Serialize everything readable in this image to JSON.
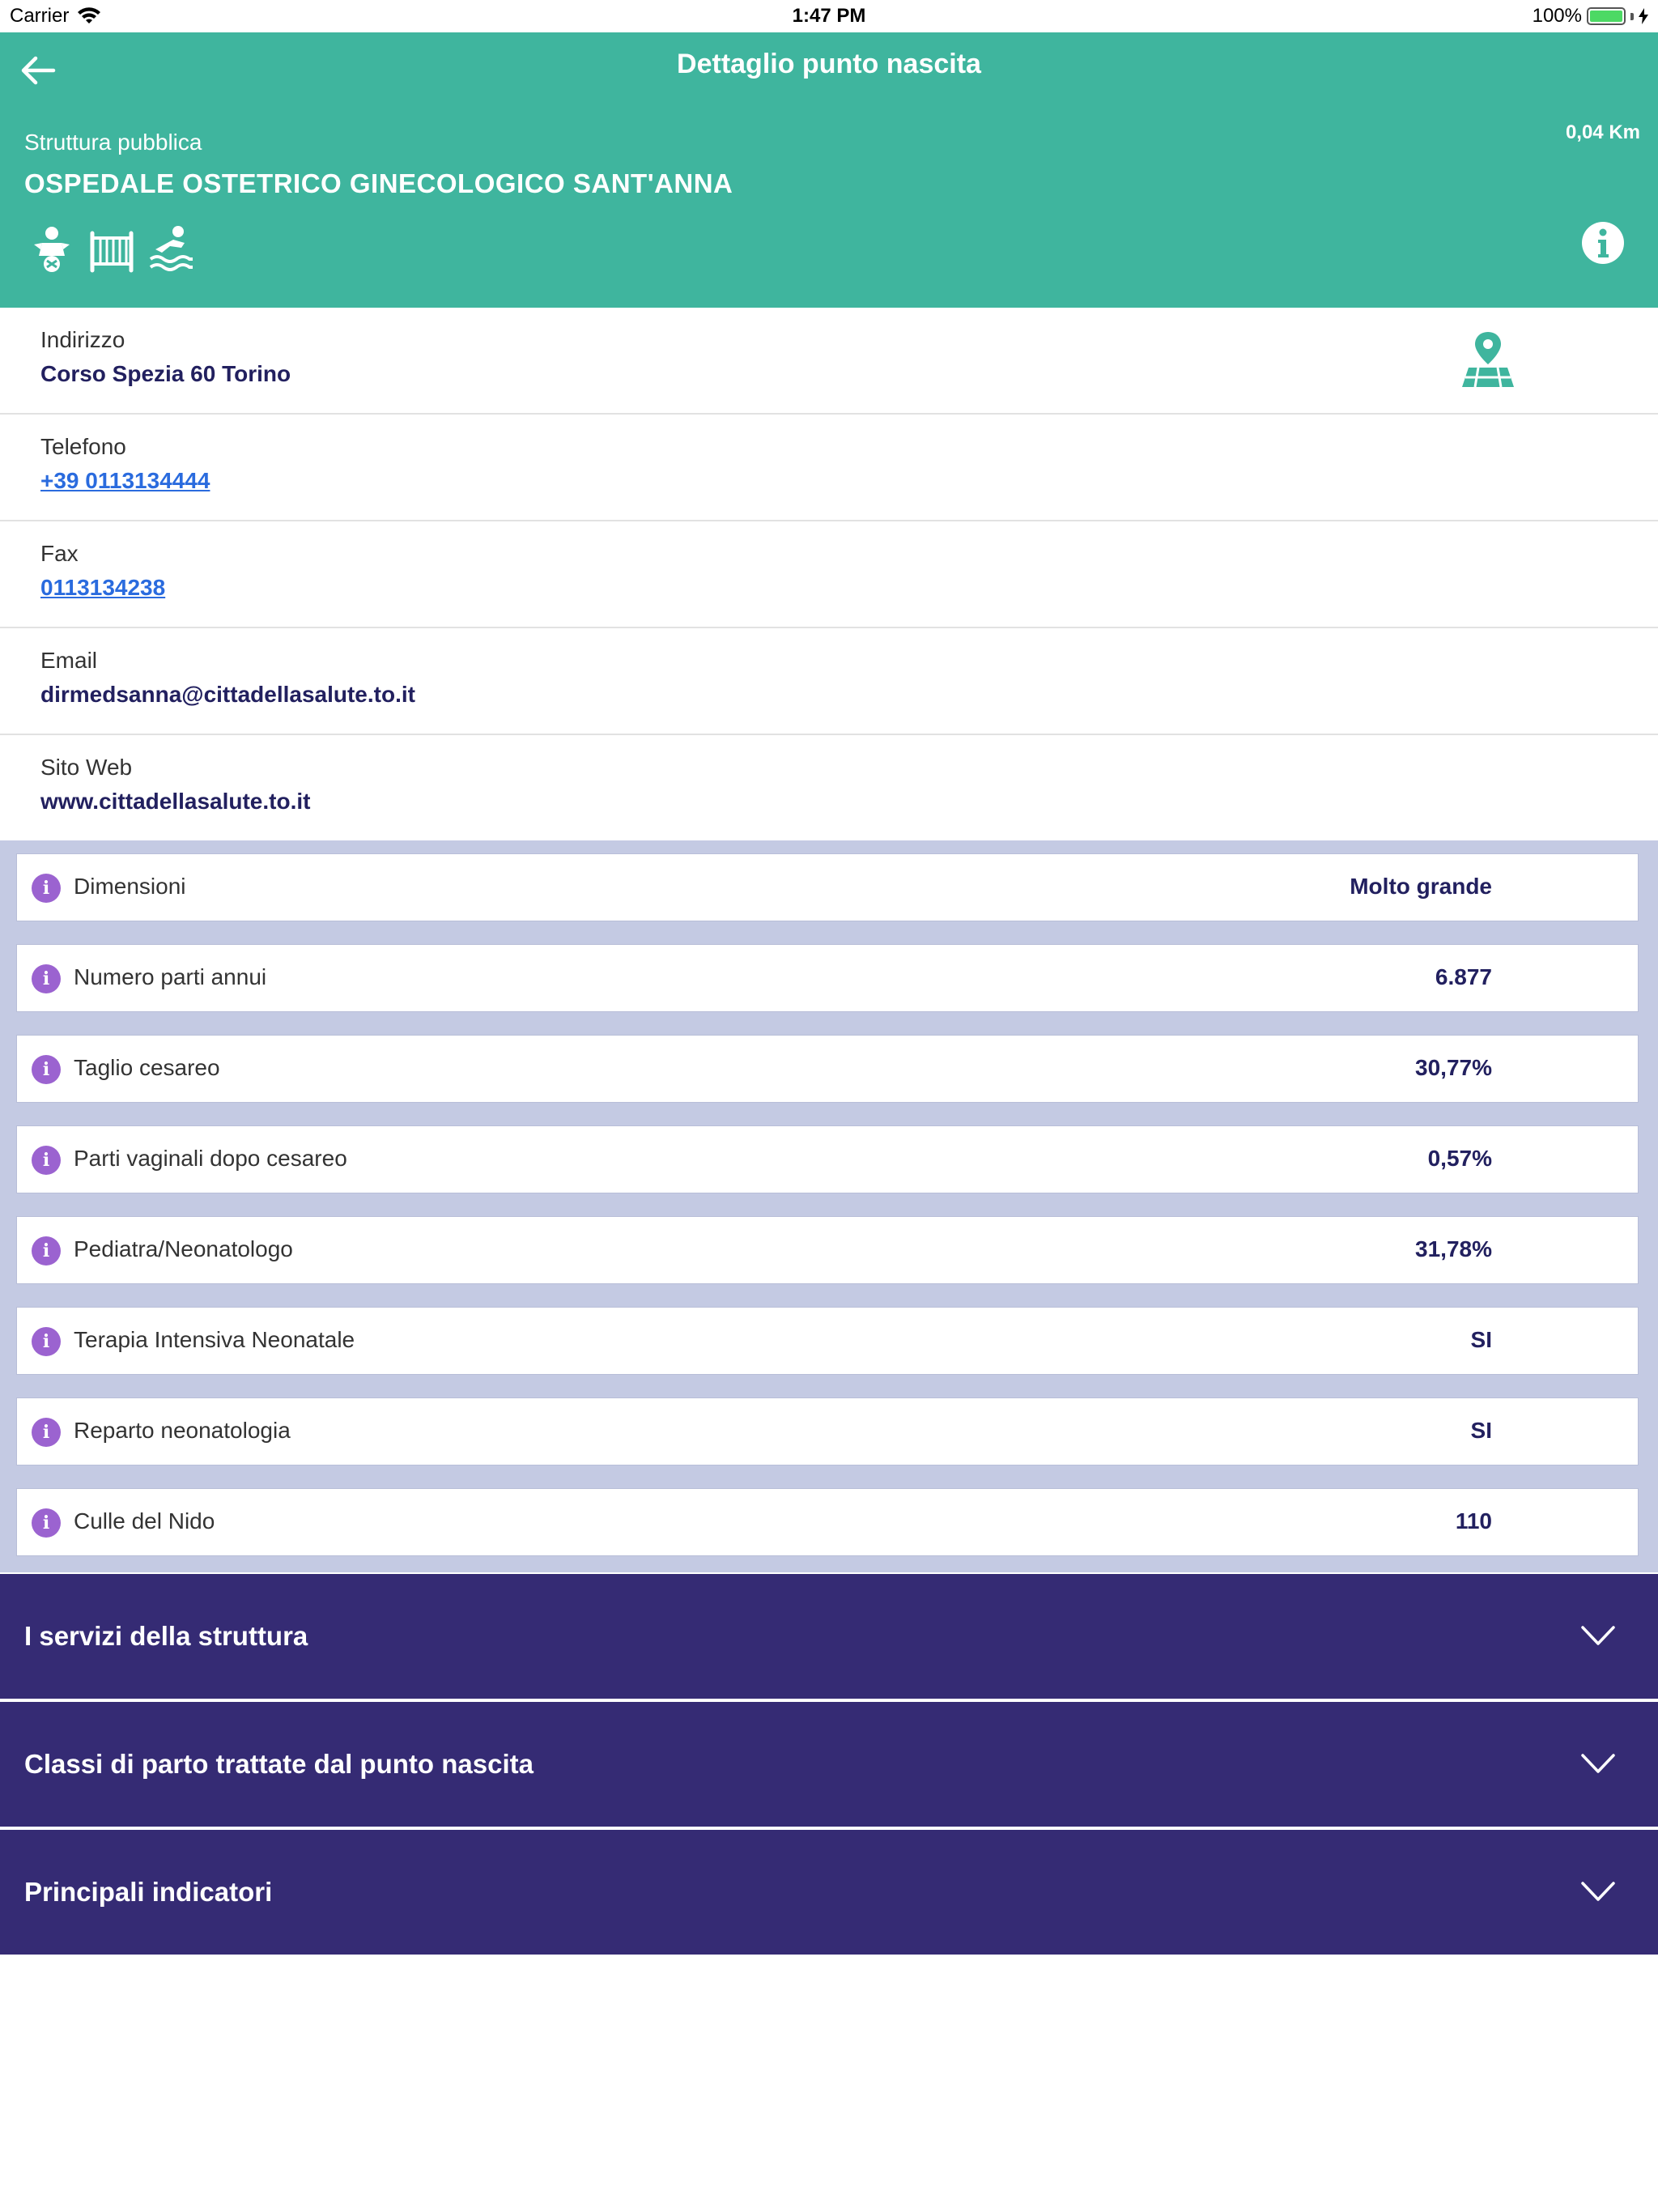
{
  "status_bar": {
    "carrier": "Carrier",
    "time": "1:47 PM",
    "battery": "100%"
  },
  "header": {
    "title": "Dettaglio punto nascita",
    "type": "Struttura pubblica",
    "name": "OSPEDALE OSTETRICO GINECOLOGICO SANT'ANNA",
    "distance": "0,04 Km",
    "feature_icons": [
      "baby-icon",
      "crib-icon",
      "water-birth-icon"
    ],
    "accent_color": "#3fb59e"
  },
  "contacts": [
    {
      "label": "Indirizzo",
      "value": "Corso Spezia 60 Torino"
    },
    {
      "label": "Telefono",
      "value": "+39 0113134444"
    },
    {
      "label": "Fax",
      "value": "0113134238"
    },
    {
      "label": "Email",
      "value": "dirmedsanna@cittadellasalute.to.it"
    },
    {
      "label": "Sito Web",
      "value": "www.cittadellasalute.to.it"
    }
  ],
  "stats": [
    {
      "label": "Dimensioni",
      "value": "Molto grande"
    },
    {
      "label": "Numero parti annui",
      "value": "6.877"
    },
    {
      "label": "Taglio cesareo",
      "value": "30,77%"
    },
    {
      "label": "Parti vaginali dopo cesareo",
      "value": "0,57%"
    },
    {
      "label": "Pediatra/Neonatologo",
      "value": "31,78%"
    },
    {
      "label": "Terapia Intensiva Neonatale",
      "value": "SI"
    },
    {
      "label": "Reparto neonatologia",
      "value": "SI"
    },
    {
      "label": "Culle del Nido",
      "value": "110"
    }
  ],
  "sections": [
    {
      "label": "I servizi della struttura"
    },
    {
      "label": "Classi di parto trattate dal punto nascita"
    },
    {
      "label": "Principali indicatori"
    }
  ],
  "colors": {
    "header": "#3fb59e",
    "accordion": "#352b74",
    "stats_bg": "#c4cae3",
    "info_dot": "#9b63d0",
    "link": "#2a6bde"
  }
}
